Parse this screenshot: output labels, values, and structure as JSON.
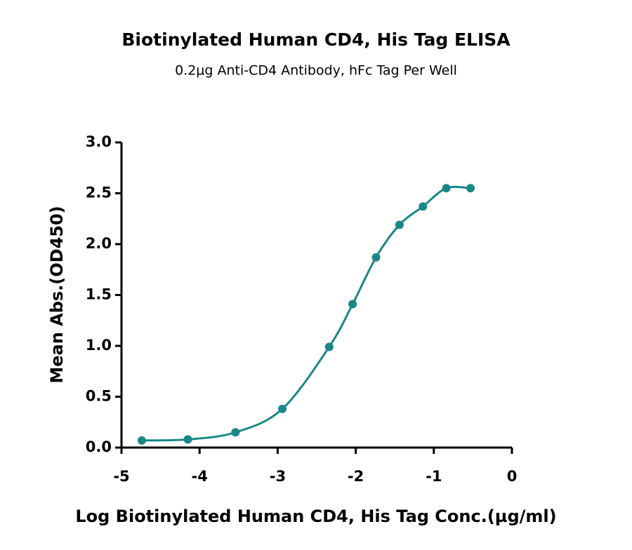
{
  "chart_data": {
    "type": "line",
    "title": "Biotinylated Human CD4, His Tag ELISA",
    "subtitle": "0.2µg Anti-CD4 Antibody, hFc Tag Per Well",
    "x_label": "Log Biotinylated Human CD4, His Tag Conc.(µg/ml)",
    "y_label": "Mean Abs.(OD450)",
    "x": [
      -4.74,
      -4.15,
      -3.54,
      -2.94,
      -2.34,
      -2.04,
      -1.74,
      -1.44,
      -1.14,
      -0.84,
      -0.53
    ],
    "series": [
      {
        "color": "#198787",
        "values": [
          0.07,
          0.08,
          0.15,
          0.38,
          0.99,
          1.41,
          1.87,
          2.19,
          2.37,
          2.55,
          2.55
        ]
      }
    ],
    "xlim": [
      -5,
      0
    ],
    "xticks": [
      -5,
      -4,
      -3,
      -2,
      -1,
      0
    ],
    "ylim": [
      0,
      3
    ],
    "yticks": [
      {
        "value": 0,
        "label": "0.0"
      },
      0.5,
      {
        "value": 1,
        "label": "1.0"
      },
      1.5,
      {
        "value": 2,
        "label": "2.0"
      },
      2.5,
      {
        "value": 3,
        "label": "3.0"
      }
    ]
  }
}
